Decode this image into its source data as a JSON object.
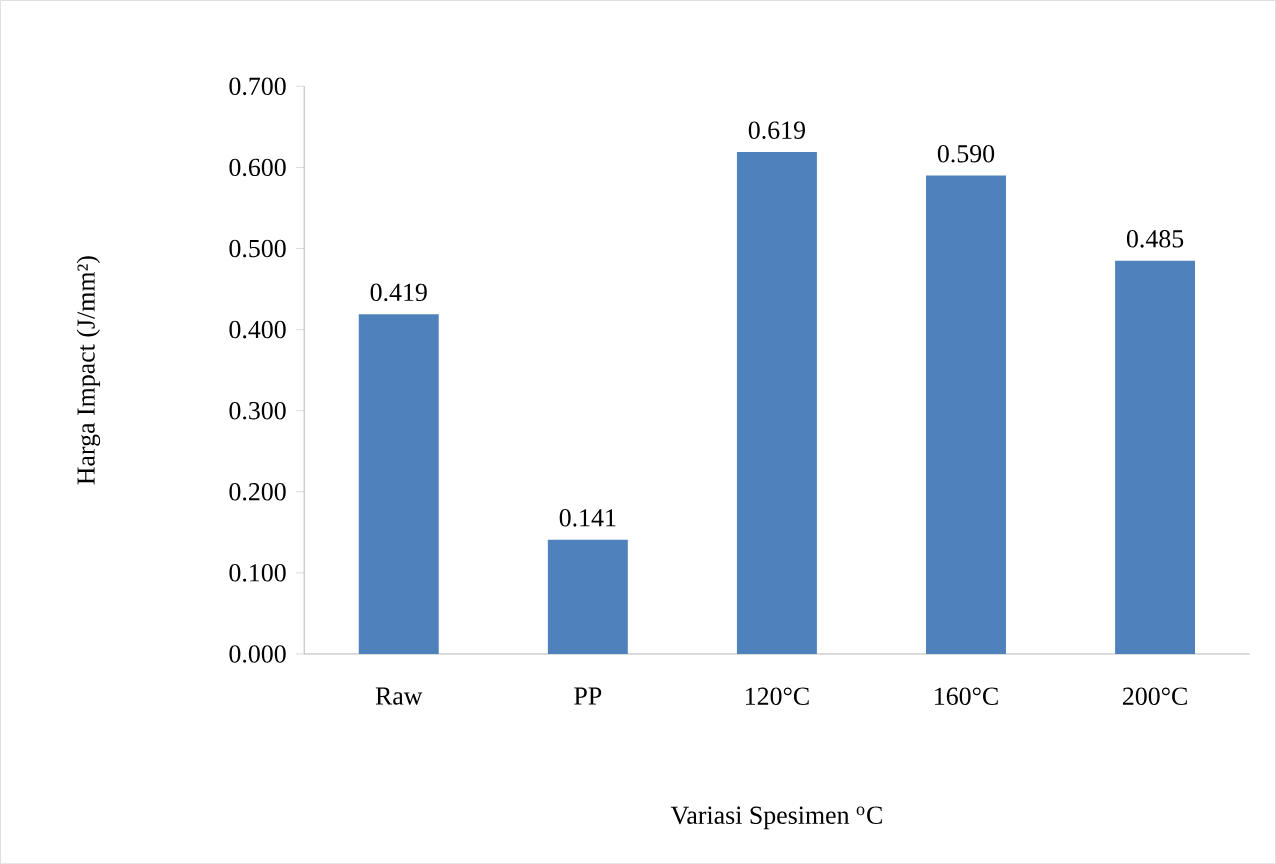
{
  "chart_data": {
    "type": "bar",
    "xlabel": "Variasi Spesimen $^{o}$C",
    "ylabel": "Harga Impact (J/mm²)",
    "categories": [
      "Raw",
      "PP",
      "120°C",
      "160°C",
      "200°C"
    ],
    "values": [
      0.419,
      0.141,
      0.619,
      0.59,
      0.485
    ],
    "value_labels": [
      "0.419",
      "0.141",
      "0.619",
      "0.590",
      "0.485"
    ],
    "color": "#4f81bd",
    "ylim": [
      0,
      0.7
    ],
    "yticks": [
      {
        "value": 0,
        "label": "0.000"
      },
      {
        "value": 0.1,
        "label": "0.100"
      },
      {
        "value": 0.2,
        "label": "0.200"
      },
      {
        "value": 0.3,
        "label": "0.300"
      },
      {
        "value": 0.4,
        "label": "0.400"
      },
      {
        "value": 0.5,
        "label": "0.500"
      },
      {
        "value": 0.6,
        "label": "0.600"
      },
      {
        "value": 0.7,
        "label": "0.700"
      }
    ],
    "grid": false
  }
}
